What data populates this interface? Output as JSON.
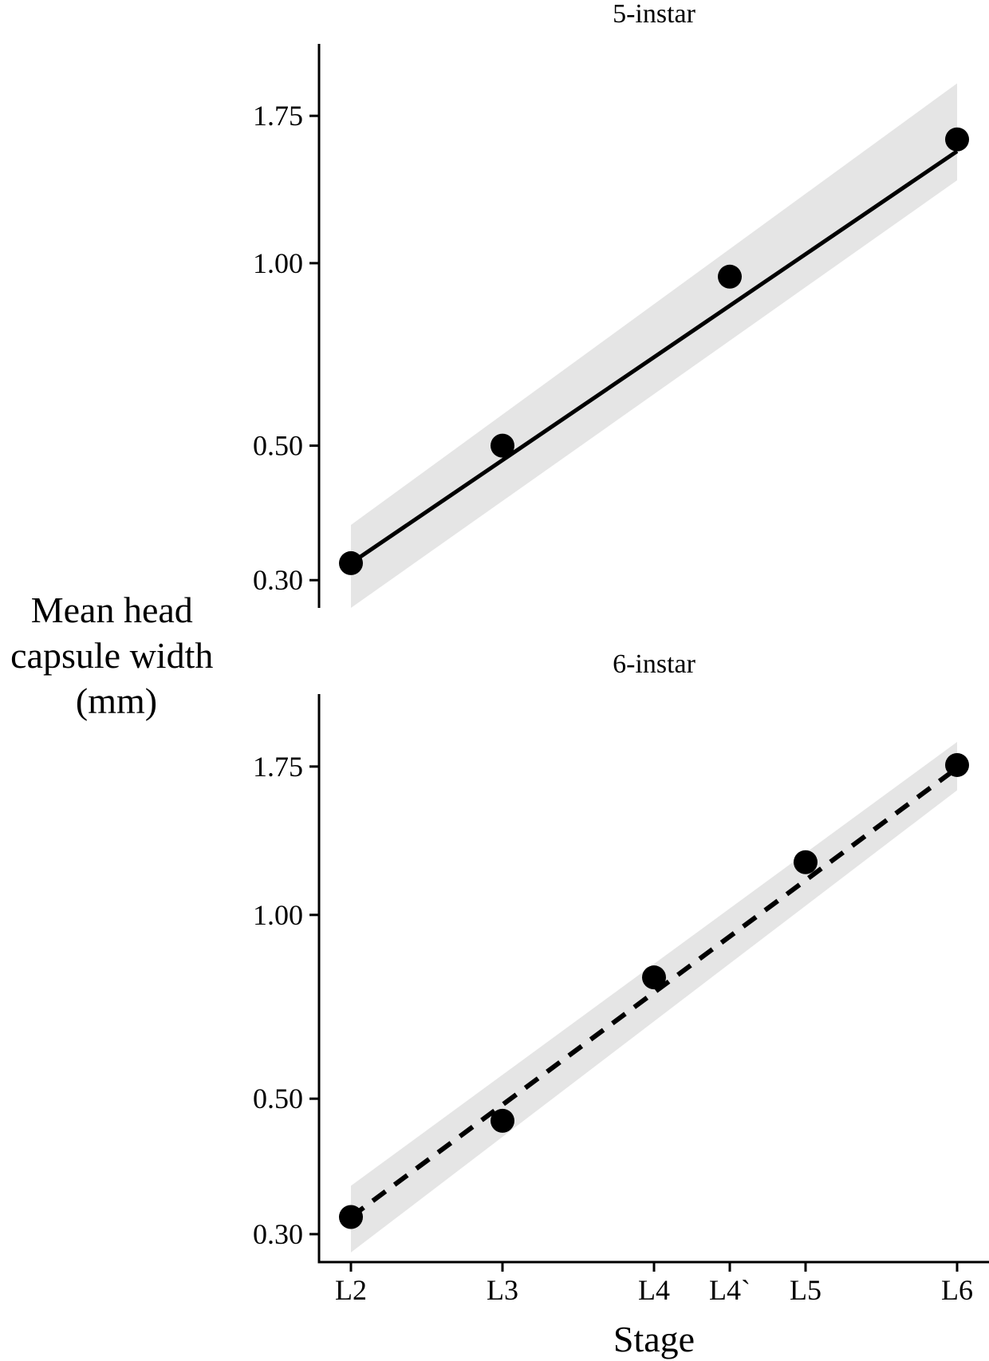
{
  "chart_data": {
    "type": "line",
    "ylabel_lines": [
      "Mean head",
      "capsule width",
      "(mm)"
    ],
    "xlabel": "Stage",
    "x_positions": [
      0,
      1,
      2,
      2.5,
      3,
      4
    ],
    "x_tick_labels": [
      "L2",
      "L3",
      "L4",
      "L4`",
      "L5",
      "L6"
    ],
    "y_scale": "log",
    "y_ticks": [
      0.3,
      0.5,
      1.0,
      1.75
    ],
    "y_tick_labels": [
      "0.30",
      "0.50",
      "1.00",
      "1.75"
    ],
    "ylim": [
      0.27,
      2.3
    ],
    "grid": false,
    "legend": "none",
    "panels": [
      {
        "title": "5-instar",
        "line_style": "solid",
        "points": [
          {
            "stage": "L2",
            "x": 0,
            "y": 0.32
          },
          {
            "stage": "L3",
            "x": 1,
            "y": 0.5
          },
          {
            "stage": "L4`",
            "x": 2.5,
            "y": 0.95
          },
          {
            "stage": "L6",
            "x": 4,
            "y": 1.6
          }
        ],
        "fit": {
          "x": [
            0,
            4
          ],
          "y": [
            0.32,
            1.53
          ],
          "lower": [
            0.27,
            1.37
          ],
          "upper": [
            0.37,
            1.98
          ]
        }
      },
      {
        "title": "6-instar",
        "line_style": "dashed",
        "points": [
          {
            "stage": "L2",
            "x": 0,
            "y": 0.32
          },
          {
            "stage": "L3",
            "x": 1,
            "y": 0.46
          },
          {
            "stage": "L4",
            "x": 2,
            "y": 0.79
          },
          {
            "stage": "L5",
            "x": 3,
            "y": 1.22
          },
          {
            "stage": "L6",
            "x": 4,
            "y": 1.76
          }
        ],
        "fit": {
          "x": [
            0,
            4
          ],
          "y": [
            0.32,
            1.74
          ],
          "lower": [
            0.28,
            1.6
          ],
          "upper": [
            0.36,
            1.92
          ]
        }
      }
    ]
  }
}
